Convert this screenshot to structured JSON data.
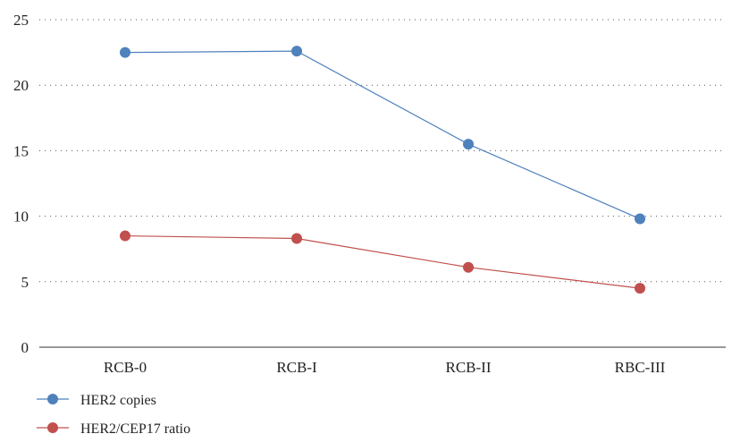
{
  "chart_data": {
    "type": "line",
    "title": "",
    "xlabel": "",
    "ylabel": "",
    "categories": [
      "RCB-0",
      "RCB-I",
      "RCB-II",
      "RBC-III"
    ],
    "ylim": [
      0,
      25
    ],
    "yticks": [
      "0",
      "5",
      "10",
      "15",
      "20",
      "25"
    ],
    "grid": true,
    "legend_position": "bottom-left",
    "series": [
      {
        "name": "HER2 copies",
        "color": "#4f81bd",
        "values": [
          22.5,
          22.6,
          15.5,
          9.8
        ]
      },
      {
        "name": "HER2/CEP17 ratio",
        "color": "#c0504d",
        "values": [
          8.5,
          8.3,
          6.1,
          4.5
        ]
      }
    ]
  }
}
